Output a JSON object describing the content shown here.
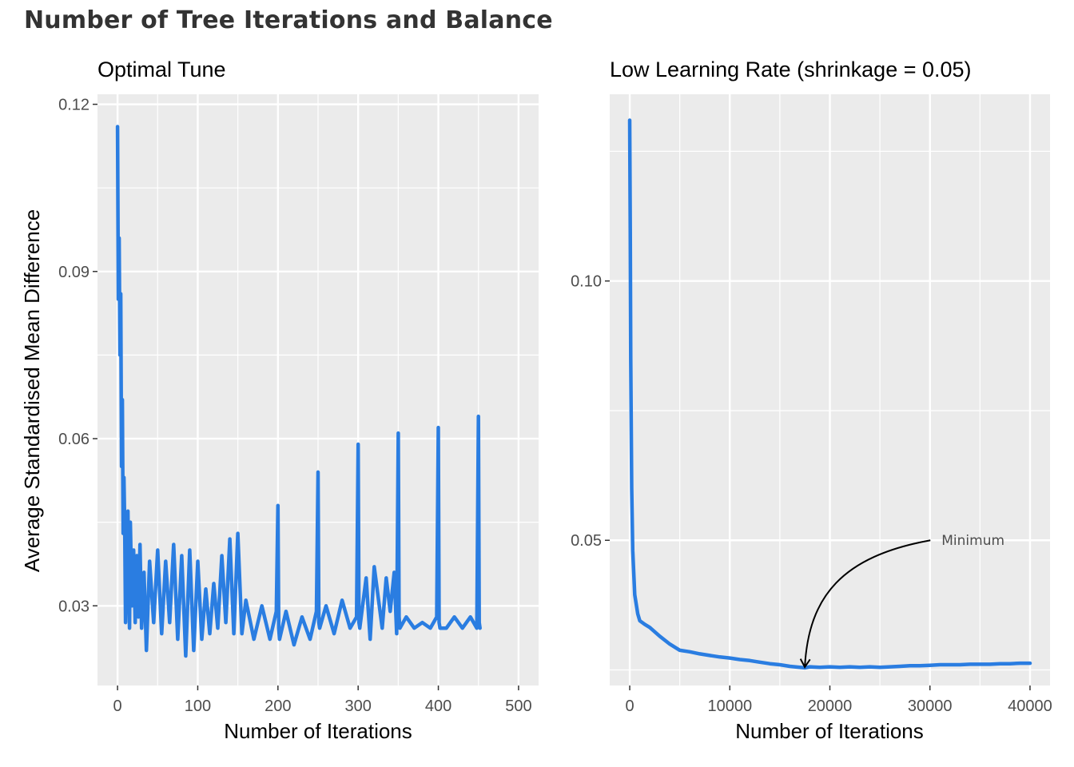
{
  "title": "Number of Tree Iterations and Balance",
  "colors": {
    "line": "#2a7de1",
    "panel_bg": "#ebebeb",
    "grid": "#ffffff",
    "text": "#333333",
    "tick": "#4d4d4d"
  },
  "chart_data": [
    {
      "type": "line",
      "subtitle": "Optimal Tune",
      "xlabel": "Number of Iterations",
      "ylabel": "Average Standardised Mean Difference",
      "xlim": [
        -25,
        525
      ],
      "ylim": [
        0.0157,
        0.1218
      ],
      "x_ticks": [
        0,
        100,
        200,
        300,
        400,
        500
      ],
      "x_tick_labels": [
        "0",
        "100",
        "200",
        "300",
        "400",
        "500"
      ],
      "y_ticks": [
        0.03,
        0.06,
        0.09,
        0.12
      ],
      "y_tick_labels": [
        "0.03",
        "0.06",
        "0.09",
        "0.12"
      ],
      "grid": true,
      "series": [
        {
          "x": [
            0,
            1,
            2,
            3,
            4,
            5,
            6,
            7,
            8,
            9,
            10,
            11,
            12,
            13,
            14,
            15,
            16,
            18,
            20,
            22,
            24,
            26,
            28,
            30,
            33,
            36,
            40,
            45,
            50,
            55,
            60,
            65,
            70,
            75,
            80,
            85,
            90,
            95,
            100,
            105,
            110,
            115,
            120,
            125,
            130,
            135,
            140,
            145,
            150,
            155,
            160,
            170,
            180,
            190,
            198,
            200,
            201,
            202,
            210,
            220,
            230,
            240,
            248,
            250,
            251,
            252,
            260,
            270,
            280,
            290,
            298,
            300,
            301,
            302,
            310,
            315,
            320,
            330,
            335,
            340,
            345,
            348,
            350,
            351,
            352,
            360,
            370,
            380,
            390,
            398,
            400,
            401,
            402,
            410,
            420,
            430,
            440,
            448,
            450,
            451,
            452
          ],
          "y": [
            0.116,
            0.085,
            0.096,
            0.075,
            0.086,
            0.055,
            0.067,
            0.043,
            0.053,
            0.044,
            0.027,
            0.041,
            0.029,
            0.047,
            0.033,
            0.026,
            0.045,
            0.03,
            0.04,
            0.027,
            0.039,
            0.028,
            0.041,
            0.026,
            0.036,
            0.022,
            0.038,
            0.027,
            0.04,
            0.025,
            0.038,
            0.027,
            0.041,
            0.024,
            0.039,
            0.021,
            0.04,
            0.022,
            0.038,
            0.024,
            0.033,
            0.025,
            0.034,
            0.026,
            0.039,
            0.027,
            0.042,
            0.025,
            0.043,
            0.025,
            0.031,
            0.024,
            0.03,
            0.024,
            0.029,
            0.048,
            0.026,
            0.024,
            0.029,
            0.023,
            0.028,
            0.024,
            0.029,
            0.054,
            0.027,
            0.026,
            0.03,
            0.025,
            0.031,
            0.026,
            0.028,
            0.059,
            0.027,
            0.026,
            0.035,
            0.024,
            0.037,
            0.026,
            0.035,
            0.029,
            0.036,
            0.025,
            0.061,
            0.028,
            0.026,
            0.028,
            0.026,
            0.027,
            0.026,
            0.028,
            0.062,
            0.027,
            0.026,
            0.026,
            0.028,
            0.026,
            0.028,
            0.026,
            0.064,
            0.027,
            0.026
          ]
        }
      ]
    },
    {
      "type": "line",
      "subtitle": "Low Learning Rate (shrinkage = 0.05)",
      "xlabel": "Number of Iterations",
      "ylabel": "",
      "xlim": [
        -2000,
        42000
      ],
      "ylim": [
        0.022,
        0.136
      ],
      "x_ticks": [
        0,
        10000,
        20000,
        30000,
        40000
      ],
      "x_tick_labels": [
        "0",
        "10000",
        "20000",
        "30000",
        "40000"
      ],
      "y_ticks": [
        0.05,
        0.1
      ],
      "y_tick_labels": [
        "0.05",
        "0.10"
      ],
      "grid": true,
      "series": [
        {
          "x": [
            0,
            50,
            100,
            200,
            300,
            500,
            800,
            1000,
            1500,
            2000,
            3000,
            4000,
            5000,
            6000,
            7000,
            8000,
            9000,
            10000,
            11000,
            12000,
            13000,
            14000,
            15000,
            16000,
            17000,
            17500,
            18000,
            19000,
            20000,
            21000,
            22000,
            23000,
            24000,
            25000,
            26000,
            27000,
            28000,
            29000,
            30000,
            31000,
            32000,
            33000,
            34000,
            35000,
            36000,
            37000,
            38000,
            39000,
            40000
          ],
          "y": [
            0.131,
            0.11,
            0.085,
            0.06,
            0.048,
            0.0395,
            0.0358,
            0.0345,
            0.0338,
            0.0332,
            0.0315,
            0.03,
            0.0288,
            0.0285,
            0.0281,
            0.0278,
            0.0275,
            0.0273,
            0.027,
            0.0268,
            0.0265,
            0.0262,
            0.026,
            0.0257,
            0.0255,
            0.0254,
            0.0256,
            0.0255,
            0.0256,
            0.0255,
            0.0256,
            0.0255,
            0.0256,
            0.0255,
            0.0256,
            0.0257,
            0.0258,
            0.0258,
            0.0259,
            0.026,
            0.026,
            0.026,
            0.0261,
            0.0261,
            0.0261,
            0.0262,
            0.0262,
            0.0263,
            0.0263
          ]
        }
      ],
      "annotations": [
        {
          "text": "Minimum",
          "x": 31000,
          "y": 0.05,
          "arrow_to": [
            17500,
            0.0254
          ]
        }
      ]
    }
  ]
}
